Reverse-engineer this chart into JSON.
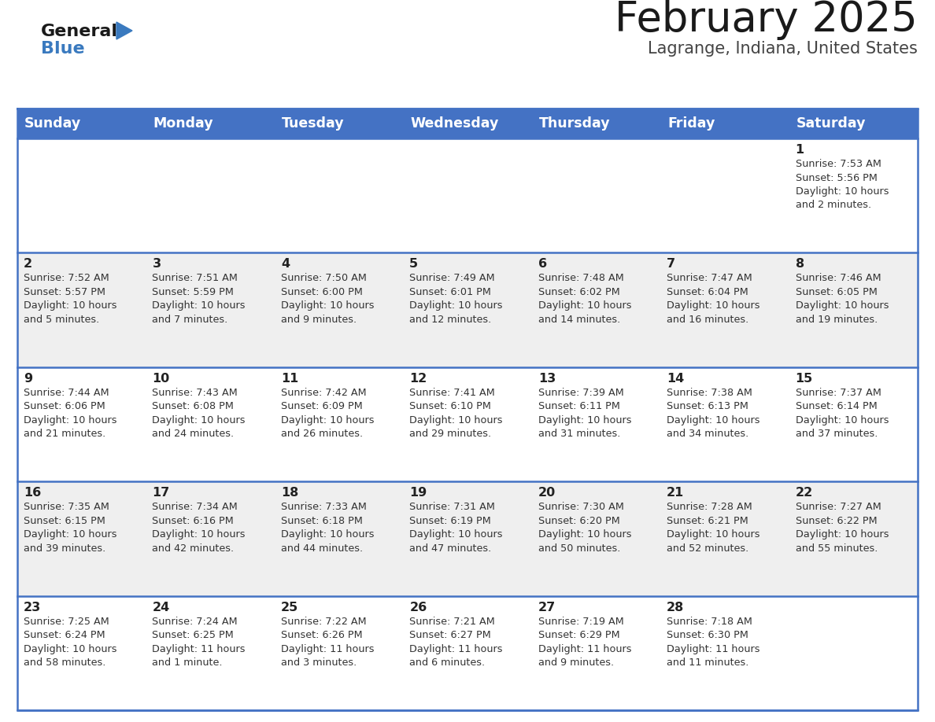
{
  "title": "February 2025",
  "subtitle": "Lagrange, Indiana, United States",
  "header_bg": "#4472C4",
  "header_text_color": "#FFFFFF",
  "day_names": [
    "Sunday",
    "Monday",
    "Tuesday",
    "Wednesday",
    "Thursday",
    "Friday",
    "Saturday"
  ],
  "odd_row_bg": "#EFEFEF",
  "even_row_bg": "#FFFFFF",
  "cell_border_color": "#4472C4",
  "title_color": "#1a1a1a",
  "subtitle_color": "#444444",
  "day_num_color": "#222222",
  "info_color": "#333333",
  "logo_general_color": "#1a1a1a",
  "logo_blue_color": "#3a7abf",
  "logo_triangle_color": "#3a7abf",
  "calendar": [
    [
      {
        "day": 0,
        "info": ""
      },
      {
        "day": 0,
        "info": ""
      },
      {
        "day": 0,
        "info": ""
      },
      {
        "day": 0,
        "info": ""
      },
      {
        "day": 0,
        "info": ""
      },
      {
        "day": 0,
        "info": ""
      },
      {
        "day": 1,
        "info": "Sunrise: 7:53 AM\nSunset: 5:56 PM\nDaylight: 10 hours\nand 2 minutes."
      }
    ],
    [
      {
        "day": 2,
        "info": "Sunrise: 7:52 AM\nSunset: 5:57 PM\nDaylight: 10 hours\nand 5 minutes."
      },
      {
        "day": 3,
        "info": "Sunrise: 7:51 AM\nSunset: 5:59 PM\nDaylight: 10 hours\nand 7 minutes."
      },
      {
        "day": 4,
        "info": "Sunrise: 7:50 AM\nSunset: 6:00 PM\nDaylight: 10 hours\nand 9 minutes."
      },
      {
        "day": 5,
        "info": "Sunrise: 7:49 AM\nSunset: 6:01 PM\nDaylight: 10 hours\nand 12 minutes."
      },
      {
        "day": 6,
        "info": "Sunrise: 7:48 AM\nSunset: 6:02 PM\nDaylight: 10 hours\nand 14 minutes."
      },
      {
        "day": 7,
        "info": "Sunrise: 7:47 AM\nSunset: 6:04 PM\nDaylight: 10 hours\nand 16 minutes."
      },
      {
        "day": 8,
        "info": "Sunrise: 7:46 AM\nSunset: 6:05 PM\nDaylight: 10 hours\nand 19 minutes."
      }
    ],
    [
      {
        "day": 9,
        "info": "Sunrise: 7:44 AM\nSunset: 6:06 PM\nDaylight: 10 hours\nand 21 minutes."
      },
      {
        "day": 10,
        "info": "Sunrise: 7:43 AM\nSunset: 6:08 PM\nDaylight: 10 hours\nand 24 minutes."
      },
      {
        "day": 11,
        "info": "Sunrise: 7:42 AM\nSunset: 6:09 PM\nDaylight: 10 hours\nand 26 minutes."
      },
      {
        "day": 12,
        "info": "Sunrise: 7:41 AM\nSunset: 6:10 PM\nDaylight: 10 hours\nand 29 minutes."
      },
      {
        "day": 13,
        "info": "Sunrise: 7:39 AM\nSunset: 6:11 PM\nDaylight: 10 hours\nand 31 minutes."
      },
      {
        "day": 14,
        "info": "Sunrise: 7:38 AM\nSunset: 6:13 PM\nDaylight: 10 hours\nand 34 minutes."
      },
      {
        "day": 15,
        "info": "Sunrise: 7:37 AM\nSunset: 6:14 PM\nDaylight: 10 hours\nand 37 minutes."
      }
    ],
    [
      {
        "day": 16,
        "info": "Sunrise: 7:35 AM\nSunset: 6:15 PM\nDaylight: 10 hours\nand 39 minutes."
      },
      {
        "day": 17,
        "info": "Sunrise: 7:34 AM\nSunset: 6:16 PM\nDaylight: 10 hours\nand 42 minutes."
      },
      {
        "day": 18,
        "info": "Sunrise: 7:33 AM\nSunset: 6:18 PM\nDaylight: 10 hours\nand 44 minutes."
      },
      {
        "day": 19,
        "info": "Sunrise: 7:31 AM\nSunset: 6:19 PM\nDaylight: 10 hours\nand 47 minutes."
      },
      {
        "day": 20,
        "info": "Sunrise: 7:30 AM\nSunset: 6:20 PM\nDaylight: 10 hours\nand 50 minutes."
      },
      {
        "day": 21,
        "info": "Sunrise: 7:28 AM\nSunset: 6:21 PM\nDaylight: 10 hours\nand 52 minutes."
      },
      {
        "day": 22,
        "info": "Sunrise: 7:27 AM\nSunset: 6:22 PM\nDaylight: 10 hours\nand 55 minutes."
      }
    ],
    [
      {
        "day": 23,
        "info": "Sunrise: 7:25 AM\nSunset: 6:24 PM\nDaylight: 10 hours\nand 58 minutes."
      },
      {
        "day": 24,
        "info": "Sunrise: 7:24 AM\nSunset: 6:25 PM\nDaylight: 11 hours\nand 1 minute."
      },
      {
        "day": 25,
        "info": "Sunrise: 7:22 AM\nSunset: 6:26 PM\nDaylight: 11 hours\nand 3 minutes."
      },
      {
        "day": 26,
        "info": "Sunrise: 7:21 AM\nSunset: 6:27 PM\nDaylight: 11 hours\nand 6 minutes."
      },
      {
        "day": 27,
        "info": "Sunrise: 7:19 AM\nSunset: 6:29 PM\nDaylight: 11 hours\nand 9 minutes."
      },
      {
        "day": 28,
        "info": "Sunrise: 7:18 AM\nSunset: 6:30 PM\nDaylight: 11 hours\nand 11 minutes."
      },
      {
        "day": 0,
        "info": ""
      }
    ]
  ]
}
